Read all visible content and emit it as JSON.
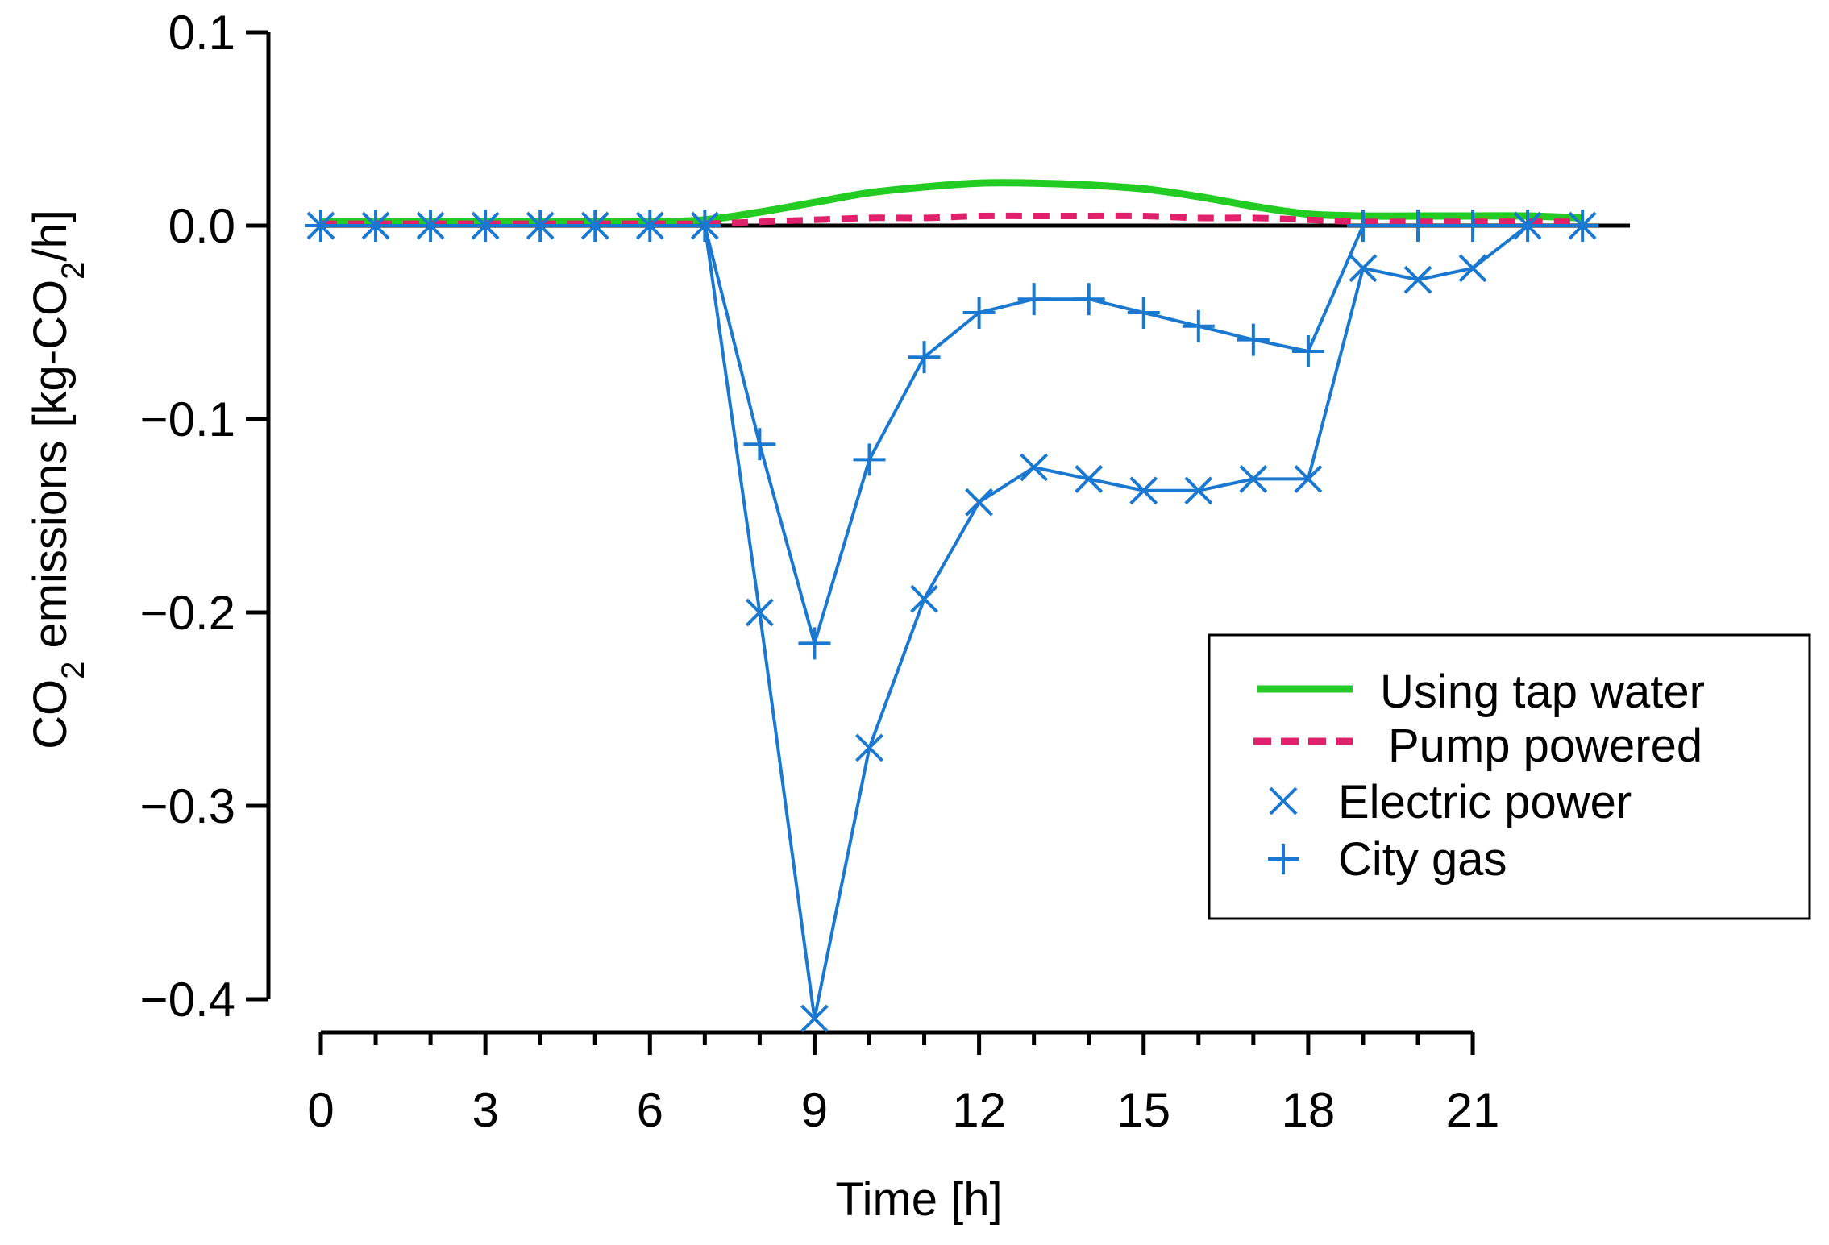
{
  "chart_data": {
    "type": "line",
    "title": "",
    "xlabel": "Time [h]",
    "ylabel": {
      "prefix": "CO",
      "sub1": "2",
      "middle": " emissions [kg-CO",
      "sub2": "2",
      "suffix": "/h]"
    },
    "xlim": [
      0,
      21
    ],
    "ylim": [
      -0.4,
      0.1
    ],
    "xticks": [
      0,
      3,
      6,
      9,
      12,
      15,
      18,
      21
    ],
    "xtick_labels": [
      "0",
      "3",
      "6",
      "9",
      "12",
      "15",
      "18",
      "21"
    ],
    "yticks": [
      0.1,
      0.0,
      -0.1,
      -0.2,
      -0.3,
      -0.4
    ],
    "ytick_labels": [
      "0.1",
      "0.0",
      "−0.1",
      "−0.2",
      "−0.3",
      "−0.4"
    ],
    "grid": false,
    "zero_line": true,
    "legend_position": "lower-right",
    "series": [
      {
        "name": "Using tap water",
        "style": "solid",
        "color": "#22cc22",
        "marker": "none",
        "x": [
          0,
          1,
          2,
          3,
          4,
          5,
          6,
          7,
          8,
          9,
          10,
          11,
          12,
          13,
          14,
          15,
          16,
          17,
          18,
          19,
          20,
          21,
          22,
          23
        ],
        "y": [
          0.002,
          0.002,
          0.002,
          0.002,
          0.002,
          0.002,
          0.002,
          0.003,
          0.007,
          0.012,
          0.017,
          0.02,
          0.022,
          0.022,
          0.021,
          0.019,
          0.015,
          0.01,
          0.006,
          0.005,
          0.005,
          0.005,
          0.005,
          0.004
        ]
      },
      {
        "name": "Pump powered",
        "style": "dashed",
        "color": "#e0206a",
        "marker": "none",
        "x": [
          0,
          1,
          2,
          3,
          4,
          5,
          6,
          7,
          8,
          9,
          10,
          11,
          12,
          13,
          14,
          15,
          16,
          17,
          18,
          19,
          20,
          21,
          22,
          23
        ],
        "y": [
          0.001,
          0.001,
          0.001,
          0.001,
          0.001,
          0.001,
          0.001,
          0.001,
          0.002,
          0.003,
          0.004,
          0.004,
          0.005,
          0.005,
          0.005,
          0.005,
          0.004,
          0.004,
          0.003,
          0.002,
          0.002,
          0.002,
          0.002,
          0.002
        ]
      },
      {
        "name": "Electric power",
        "style": "solid",
        "color": "#1a78d0",
        "marker": "x",
        "x": [
          0,
          1,
          2,
          3,
          4,
          5,
          6,
          7,
          8,
          9,
          10,
          11,
          12,
          13,
          14,
          15,
          16,
          17,
          18,
          19,
          20,
          21,
          22,
          23
        ],
        "y": [
          0,
          0,
          0,
          0,
          0,
          0,
          0,
          0,
          -0.2,
          -0.41,
          -0.27,
          -0.193,
          -0.143,
          -0.125,
          -0.131,
          -0.137,
          -0.137,
          -0.131,
          -0.131,
          -0.022,
          -0.028,
          -0.022,
          0,
          0
        ]
      },
      {
        "name": "City gas",
        "style": "solid",
        "color": "#1a78d0",
        "marker": "+",
        "x": [
          0,
          1,
          2,
          3,
          4,
          5,
          6,
          7,
          8,
          9,
          10,
          11,
          12,
          13,
          14,
          15,
          16,
          17,
          18,
          19,
          20,
          21,
          22,
          23
        ],
        "y": [
          0,
          0,
          0,
          0,
          0,
          0,
          0,
          0,
          -0.113,
          -0.216,
          -0.121,
          -0.068,
          -0.045,
          -0.038,
          -0.038,
          -0.045,
          -0.052,
          -0.059,
          -0.065,
          0,
          0,
          0,
          0,
          0
        ]
      }
    ]
  }
}
